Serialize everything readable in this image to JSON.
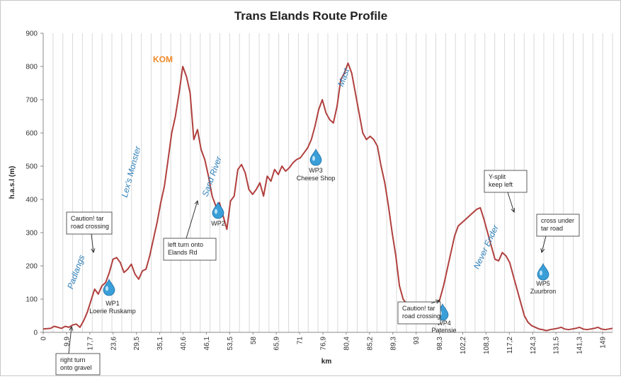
{
  "chart_data": {
    "type": "line",
    "title": "Trans Elands Route Profile",
    "xlabel": "km",
    "ylabel": "h.a.s.l (m)",
    "ylim": [
      0,
      900
    ],
    "yticks": [
      0,
      100,
      200,
      300,
      400,
      500,
      600,
      700,
      800,
      900
    ],
    "xlim": [
      0,
      155
    ],
    "xtick_labels": [
      "0",
      "9,9",
      "17,7",
      "23,6",
      "29,5",
      "35,1",
      "40,6",
      "46,1",
      "53,5",
      "58",
      "65,9",
      "71",
      "76,9",
      "80,4",
      "85,2",
      "89,3",
      "93",
      "98,3",
      "102,2",
      "108,3",
      "117,2",
      "124,3",
      "131,5",
      "141,3",
      "149"
    ],
    "grid": "vertical",
    "line_color": "#b0403e",
    "series": [
      {
        "x": [
          0,
          2,
          3,
          4,
          5,
          6,
          7,
          8,
          9,
          10,
          11,
          12,
          13,
          14,
          15,
          16,
          17,
          18,
          19,
          20,
          21,
          22,
          23,
          24,
          25,
          26,
          27,
          28,
          29,
          30,
          31,
          32,
          33,
          34,
          35,
          36,
          37,
          38,
          39,
          40,
          41,
          42,
          43,
          44,
          45,
          46,
          47,
          48,
          49,
          50,
          51,
          52,
          53,
          54,
          55,
          56,
          57,
          58,
          59,
          60,
          61,
          62,
          63,
          64,
          65,
          66,
          67,
          68,
          69,
          70,
          71,
          72,
          73,
          74,
          75,
          76,
          77,
          78,
          79,
          80,
          81,
          82,
          83,
          84,
          85,
          86,
          87,
          88,
          89,
          90,
          91,
          92,
          93,
          94,
          95,
          96,
          97,
          98,
          99,
          100,
          101,
          102,
          103,
          104,
          105,
          106,
          107,
          108,
          109,
          110,
          111,
          112,
          113,
          114,
          115,
          116,
          117,
          118,
          119,
          120,
          121,
          122,
          123,
          124,
          125,
          126,
          127,
          128,
          129,
          130,
          131,
          132,
          133,
          134,
          135,
          136,
          137,
          138,
          139,
          140,
          141,
          142,
          143,
          144,
          145,
          146,
          147,
          148,
          149,
          150,
          151,
          152,
          153,
          154,
          155
        ],
        "values": [
          10,
          12,
          18,
          15,
          12,
          18,
          15,
          22,
          25,
          15,
          35,
          60,
          95,
          130,
          115,
          140,
          150,
          180,
          220,
          225,
          210,
          180,
          190,
          205,
          175,
          160,
          185,
          190,
          230,
          280,
          330,
          390,
          440,
          520,
          600,
          650,
          720,
          800,
          770,
          720,
          580,
          610,
          550,
          520,
          470,
          410,
          380,
          390,
          350,
          310,
          395,
          410,
          490,
          505,
          480,
          430,
          415,
          430,
          450,
          410,
          470,
          455,
          490,
          475,
          500,
          485,
          495,
          510,
          520,
          525,
          540,
          555,
          580,
          620,
          670,
          700,
          660,
          640,
          630,
          680,
          760,
          780,
          810,
          780,
          720,
          660,
          600,
          580,
          590,
          580,
          560,
          500,
          450,
          380,
          300,
          230,
          140,
          100,
          85,
          80,
          70,
          60,
          55,
          60,
          60,
          65,
          70,
          100,
          140,
          190,
          240,
          290,
          320,
          330,
          340,
          350,
          360,
          370,
          375,
          340,
          300,
          260,
          220,
          215,
          240,
          230,
          210,
          170,
          130,
          90,
          50,
          30,
          20,
          15,
          10,
          8,
          5,
          8,
          10,
          12,
          15,
          10,
          8,
          10,
          12,
          15,
          10,
          8,
          10,
          12,
          15,
          10,
          8,
          10,
          12
        ]
      }
    ],
    "annotations": [
      {
        "text": "Padlangs",
        "style": "blue-italic"
      },
      {
        "text": "Lex's Monster",
        "style": "blue-italic"
      },
      {
        "text": "KOM",
        "style": "orange-bold"
      },
      {
        "text": "Sand River",
        "style": "blue-italic"
      },
      {
        "text": "Mast",
        "style": "blue-italic"
      },
      {
        "text": "Never Ender",
        "style": "blue-italic"
      }
    ],
    "waypoints": [
      {
        "id": "WP1",
        "name": "Loerie Ruskamp",
        "km": 23.6
      },
      {
        "id": "WP2",
        "name": "",
        "km": 53.5
      },
      {
        "id": "WP3",
        "name": "Cheese Shop",
        "km": 76.9
      },
      {
        "id": "WP4",
        "name": "Patensie",
        "km": 102.2
      },
      {
        "id": "WP5",
        "name": "Zuurbron",
        "km": 131.5
      }
    ],
    "callouts": [
      {
        "lines": [
          "Caution! tar",
          "road crossing"
        ]
      },
      {
        "lines": [
          "left turn onto",
          "Elands Rd"
        ]
      },
      {
        "lines": [
          "right turn",
          "onto gravel"
        ]
      },
      {
        "lines": [
          "Caution! tar",
          "road crossing"
        ]
      },
      {
        "lines": [
          "Y-split",
          "keep left"
        ]
      },
      {
        "lines": [
          "cross under",
          "tar road"
        ]
      }
    ]
  }
}
